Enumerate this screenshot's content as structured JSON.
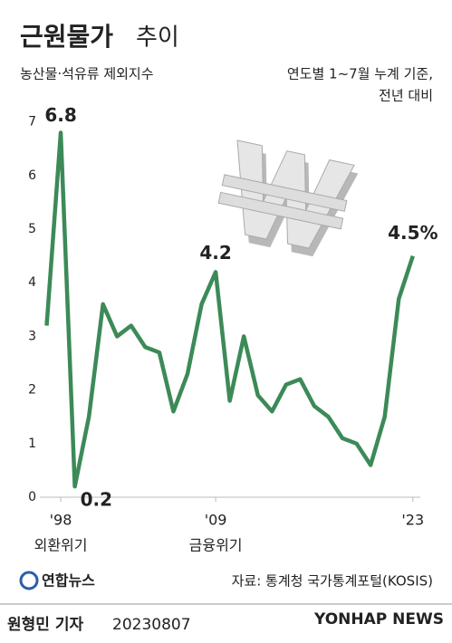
{
  "chart_data": {
    "type": "line",
    "title": "근원물가",
    "title_suffix": "추이",
    "subtitle": "농산물·석유류 제외지수",
    "note": [
      "연도별 1~7월 누계 기준,",
      "전년 대비"
    ],
    "categories": [
      null,
      "'98",
      null,
      null,
      null,
      null,
      null,
      null,
      null,
      null,
      null,
      null,
      "'09",
      null,
      null,
      null,
      null,
      null,
      null,
      null,
      null,
      null,
      null,
      null,
      null,
      null,
      "'23"
    ],
    "annotations": [
      {
        "category": 1,
        "text": "외환위기"
      },
      {
        "category": 12,
        "text": "금융위기"
      }
    ],
    "series": [
      {
        "name": "근원물가",
        "color": "#3c8a58",
        "values": [
          3.2,
          6.8,
          0.2,
          1.5,
          3.6,
          3.0,
          3.2,
          2.8,
          2.7,
          1.6,
          2.3,
          3.6,
          4.2,
          1.8,
          3.0,
          1.9,
          1.6,
          2.1,
          2.2,
          1.7,
          1.5,
          1.1,
          1.0,
          0.6,
          1.5,
          3.7,
          4.5
        ],
        "value_labels": [
          null,
          "6.8",
          "0.2",
          null,
          null,
          null,
          null,
          null,
          null,
          null,
          null,
          null,
          "4.2",
          null,
          null,
          null,
          null,
          null,
          null,
          null,
          null,
          null,
          null,
          null,
          null,
          null,
          "4.5%"
        ]
      }
    ],
    "ylim": [
      0,
      7.4
    ],
    "yticks": [
      0,
      1,
      2,
      3,
      4,
      5,
      6,
      7
    ],
    "grid": false,
    "source": "자료: 통계청 국가통계포털(KOSIS)",
    "logo": "연합뉴스",
    "reporter": "원형민 기자",
    "date": "20230807",
    "watermark": "YONHAP NEWS"
  }
}
